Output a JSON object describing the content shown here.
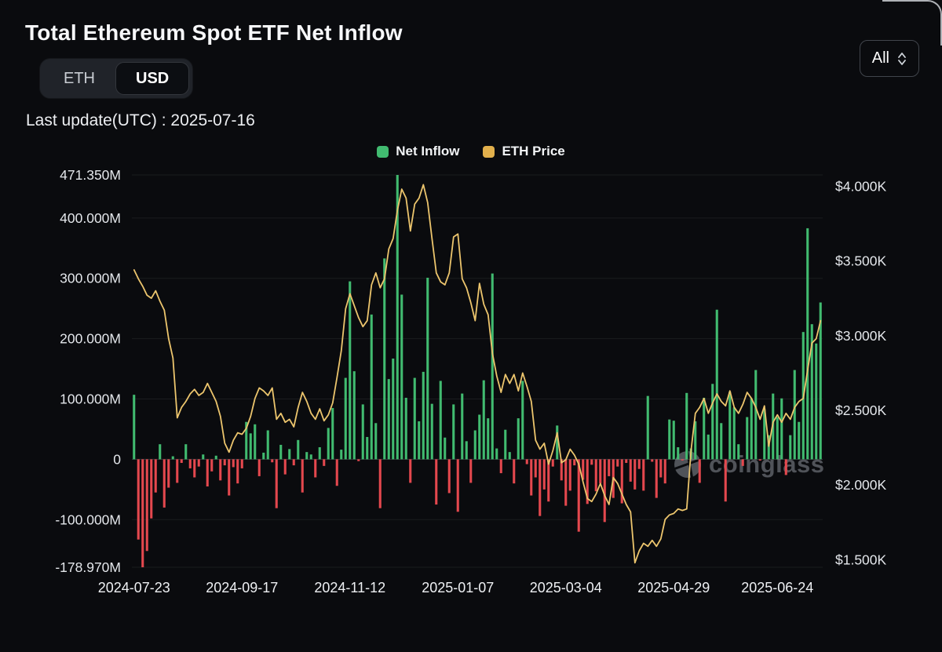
{
  "header": {
    "title": "Total Ethereum Spot ETF Net Inflow",
    "last_update_label": "Last update(UTC) : 2025-07-16",
    "range_selector": "All"
  },
  "toggle": {
    "options": [
      "ETH",
      "USD"
    ],
    "selected": "USD"
  },
  "legend": [
    {
      "label": "Net Inflow",
      "color": "#41bb70"
    },
    {
      "label": "ETH Price",
      "color": "#e2b04c"
    }
  ],
  "watermark": "coinglass",
  "colors": {
    "background": "#0a0b0e",
    "positive": "#41bb70",
    "negative": "#e4484e",
    "price_line": "#ecc56d"
  },
  "chart_data": {
    "type": "combo",
    "title": "Total Ethereum Spot ETF Net Inflow",
    "x_tick_labels": [
      "2024-07-23",
      "2024-09-17",
      "2024-11-12",
      "2025-01-07",
      "2025-03-04",
      "2025-04-29",
      "2025-06-24"
    ],
    "x_tick_indices": [
      0,
      25,
      50,
      75,
      100,
      125,
      149
    ],
    "left_axis": {
      "unit": "USD millions",
      "min": -178.97,
      "max": 471.35,
      "ticks": [
        {
          "v": 471.35,
          "label": "471.350M"
        },
        {
          "v": 400,
          "label": "400.000M"
        },
        {
          "v": 300,
          "label": "300.000M"
        },
        {
          "v": 200,
          "label": "200.000M"
        },
        {
          "v": 100,
          "label": "100.000M"
        },
        {
          "v": 0,
          "label": "0"
        },
        {
          "v": -100,
          "label": "-100.000M"
        },
        {
          "v": -178.97,
          "label": "-178.970M"
        }
      ]
    },
    "right_axis": {
      "unit": "USD",
      "min": 1450,
      "max": 4075,
      "ticks": [
        {
          "v": 4000,
          "label": "$4.000K"
        },
        {
          "v": 3500,
          "label": "$3.500K"
        },
        {
          "v": 3000,
          "label": "$3.000K"
        },
        {
          "v": 2500,
          "label": "$2.500K"
        },
        {
          "v": 2000,
          "label": "$2.000K"
        },
        {
          "v": 1500,
          "label": "$1.500K"
        }
      ]
    },
    "series": [
      {
        "name": "Net Inflow",
        "type": "bar",
        "color_pos": "#41bb70",
        "color_neg": "#e4484e",
        "values": [
          107,
          -133,
          -178.97,
          -152,
          -98,
          -55,
          25,
          -80,
          -47,
          5,
          -39,
          -6,
          25,
          -15,
          -30,
          -12,
          8,
          -45,
          -20,
          6,
          -35,
          -10,
          -60,
          -13,
          -40,
          -15,
          62,
          43,
          58,
          -28,
          11,
          48,
          -5,
          -81,
          24,
          -25,
          17,
          -10,
          32,
          -55,
          12,
          8,
          -30,
          20,
          -11,
          52,
          85,
          -44,
          16,
          135,
          295,
          146,
          -3,
          91,
          37,
          240,
          60,
          -81,
          333,
          133,
          167,
          471.35,
          273,
          102,
          -39,
          135,
          63,
          145,
          301,
          92,
          -75,
          130,
          36,
          -56,
          91,
          -87,
          109,
          30,
          -39,
          48,
          74,
          131,
          68,
          308,
          18,
          -23,
          49,
          12,
          -40,
          68,
          130,
          -8,
          -60,
          -30,
          -94,
          -50,
          -70,
          -12,
          56,
          -35,
          -77,
          -52,
          -10,
          -120,
          -34,
          -74,
          -9,
          -53,
          -40,
          -104,
          -28,
          -64,
          -12,
          -73,
          -6,
          -37,
          -50,
          -16,
          -52,
          105,
          -4,
          -64,
          -30,
          -40,
          66,
          64,
          20,
          -2,
          110,
          18,
          63,
          -39,
          102,
          41,
          125,
          248,
          60,
          -70,
          112,
          86,
          25,
          -11,
          70,
          101,
          148,
          -2,
          83,
          40,
          109,
          70,
          101,
          -26,
          40,
          148,
          62,
          211,
          383,
          224,
          192,
          260
        ]
      },
      {
        "name": "ETH Price",
        "type": "line",
        "color": "#ecc56d",
        "values": [
          3440,
          3380,
          3330,
          3270,
          3250,
          3300,
          3230,
          3170,
          2980,
          2850,
          2450,
          2520,
          2560,
          2610,
          2640,
          2600,
          2620,
          2680,
          2620,
          2560,
          2460,
          2280,
          2220,
          2300,
          2350,
          2340,
          2380,
          2460,
          2580,
          2650,
          2630,
          2600,
          2650,
          2440,
          2480,
          2420,
          2440,
          2390,
          2520,
          2620,
          2560,
          2480,
          2440,
          2510,
          2430,
          2470,
          2550,
          2720,
          2900,
          3180,
          3280,
          3200,
          3120,
          3060,
          3100,
          3340,
          3420,
          3320,
          3380,
          3580,
          3650,
          3840,
          3980,
          3920,
          3700,
          3880,
          3920,
          4010,
          3890,
          3650,
          3420,
          3360,
          3340,
          3420,
          3660,
          3680,
          3380,
          3320,
          3220,
          3100,
          3350,
          3210,
          3140,
          2880,
          2730,
          2620,
          2740,
          2680,
          2740,
          2630,
          2750,
          2660,
          2560,
          2300,
          2240,
          2280,
          2140,
          2230,
          2350,
          2150,
          2170,
          2240,
          2200,
          2140,
          2020,
          1910,
          1890,
          1940,
          2010,
          1930,
          1870,
          2050,
          2010,
          1940,
          1870,
          1820,
          1480,
          1560,
          1610,
          1590,
          1630,
          1590,
          1640,
          1770,
          1800,
          1810,
          1840,
          1830,
          1840,
          2230,
          2480,
          2520,
          2580,
          2480,
          2550,
          2610,
          2560,
          2530,
          2630,
          2520,
          2480,
          2540,
          2620,
          2580,
          2520,
          2440,
          2530,
          2260,
          2420,
          2470,
          2420,
          2480,
          2440,
          2520,
          2560,
          2580,
          2770,
          2950,
          2980,
          3100
        ]
      }
    ]
  }
}
